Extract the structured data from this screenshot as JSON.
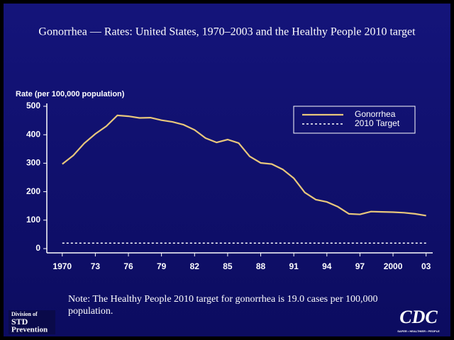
{
  "chart_data": {
    "type": "line",
    "title": "Gonorrhea — Rates: United States, 1970–2003 and the Healthy People  2010 target",
    "ylabel": "Rate (per 100,000 population)",
    "note": "Note: The Healthy People 2010 target for gonorrhea is 19.0 cases per 100,000 population.",
    "x": [
      1970,
      1971,
      1972,
      1973,
      1974,
      1975,
      1976,
      1977,
      1978,
      1979,
      1980,
      1981,
      1982,
      1983,
      1984,
      1985,
      1986,
      1987,
      1988,
      1989,
      1990,
      1991,
      1992,
      1993,
      1994,
      1995,
      1996,
      1997,
      1998,
      1999,
      2000,
      2001,
      2002,
      2003
    ],
    "series": [
      {
        "name": "Gonorrhea",
        "color": "#e8c77c",
        "dashed": false,
        "values": [
          297,
          327,
          370,
          403,
          430,
          468,
          465,
          459,
          460,
          451,
          445,
          435,
          417,
          388,
          373,
          383,
          371,
          324,
          301,
          297,
          278,
          247,
          197,
          172,
          164,
          147,
          122,
          120,
          130,
          129,
          128,
          126,
          122,
          116
        ]
      },
      {
        "name": "2010 Target",
        "color": "#ffffff",
        "dashed": true,
        "values": [
          19,
          19,
          19,
          19,
          19,
          19,
          19,
          19,
          19,
          19,
          19,
          19,
          19,
          19,
          19,
          19,
          19,
          19,
          19,
          19,
          19,
          19,
          19,
          19,
          19,
          19,
          19,
          19,
          19,
          19,
          19,
          19,
          19,
          19
        ]
      }
    ],
    "xlim": [
      1968.6,
      2003.6
    ],
    "xticks": [
      1970,
      {
        "value": 1973,
        "label": "73"
      },
      {
        "value": 1976,
        "label": "76"
      },
      {
        "value": 1979,
        "label": "79"
      },
      {
        "value": 1982,
        "label": "82"
      },
      {
        "value": 1985,
        "label": "85"
      },
      {
        "value": 1988,
        "label": "88"
      },
      {
        "value": 1991,
        "label": "91"
      },
      {
        "value": 1994,
        "label": "94"
      },
      {
        "value": 1997,
        "label": "97"
      },
      2000,
      {
        "value": 2003,
        "label": "03"
      }
    ],
    "ylim": [
      -15,
      510
    ],
    "yticks": [
      0,
      100,
      200,
      300,
      400,
      500
    ],
    "legend": "top-right"
  },
  "logos": {
    "left": [
      "Division of",
      "STD",
      "Prevention"
    ],
    "right": "CDC",
    "right_tagline": "SAFER • HEALTHIER • PEOPLE"
  }
}
